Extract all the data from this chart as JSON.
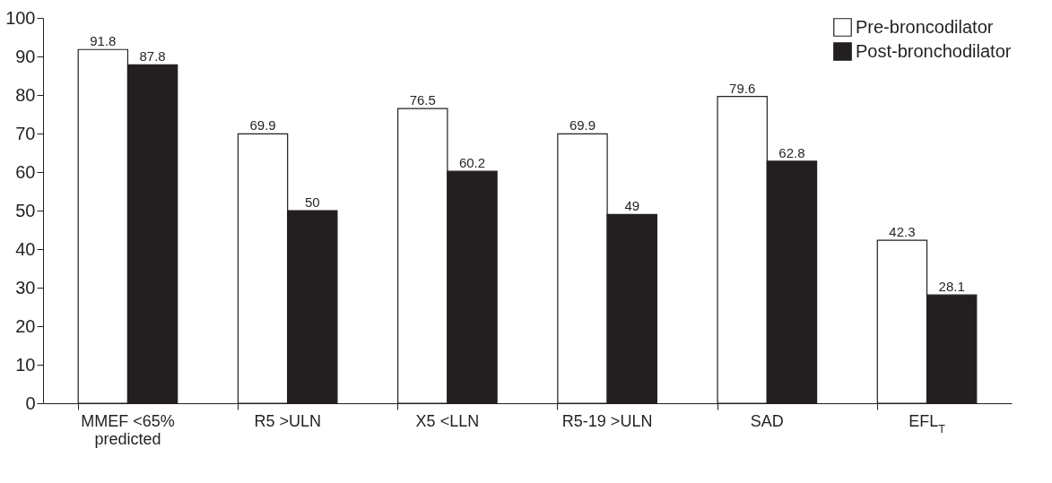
{
  "chart_data": {
    "type": "bar",
    "categories": [
      "MMEF <65% predicted",
      "R5 >ULN",
      "X5 <LLN",
      "R5-19 >ULN",
      "SAD",
      "EFL$_{T}$"
    ],
    "series": [
      {
        "name": "Pre-broncodilator",
        "color": "#ffffff",
        "values": [
          91.8,
          69.9,
          76.5,
          69.9,
          79.6,
          42.3
        ]
      },
      {
        "name": "Post-bronchodilator",
        "color": "#231f20",
        "values": [
          87.8,
          50,
          60.2,
          49,
          62.8,
          28.1
        ]
      }
    ],
    "ylim": [
      0,
      100
    ],
    "yticks": [
      0,
      10,
      20,
      30,
      40,
      50,
      60,
      70,
      80,
      90,
      100
    ],
    "data_labels": true,
    "legend": "top right",
    "grid": false
  }
}
